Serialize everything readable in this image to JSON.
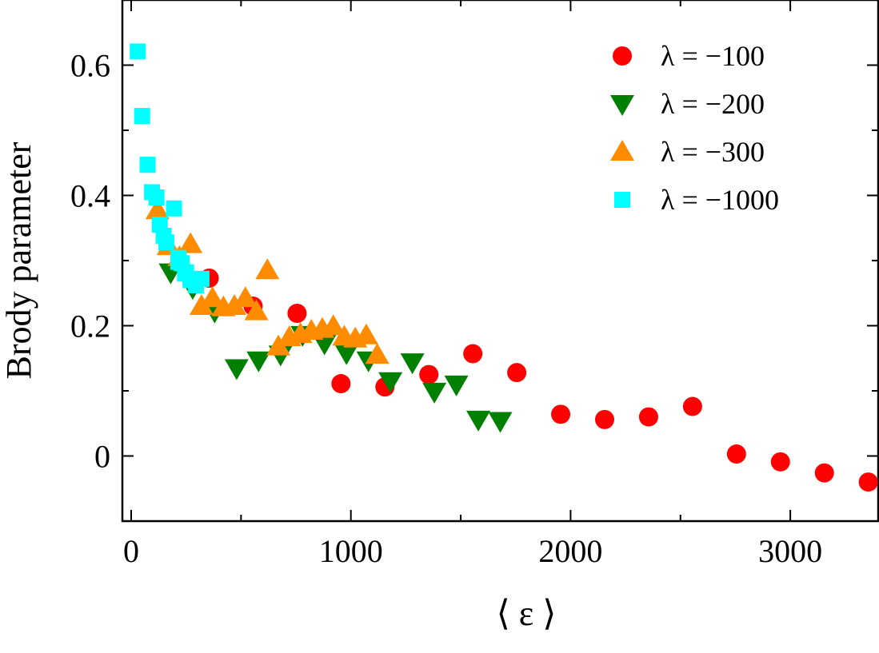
{
  "chart_data": {
    "type": "scatter",
    "xlabel": "⟨ ε ⟩",
    "ylabel": "Brody parameter",
    "xlim": [
      -40,
      3400
    ],
    "ylim": [
      -0.1,
      0.7
    ],
    "xticks": [
      0,
      1000,
      2000,
      3000
    ],
    "xtick_labels": [
      "0",
      "1000",
      "2000",
      "3000"
    ],
    "yticks": [
      0,
      0.2,
      0.4,
      0.6
    ],
    "ytick_labels": [
      "0",
      "0.2",
      "0.4",
      "0.6"
    ],
    "grid": false,
    "legend_position": "top-right",
    "series": [
      {
        "name": "λ = −100",
        "marker": "circle",
        "color": "#ff0000",
        "x": [
          355,
          555,
          755,
          955,
          1155,
          1355,
          1555,
          1755,
          1955,
          2155,
          2355,
          2555,
          2755,
          2955,
          3155,
          3355
        ],
        "y": [
          0.273,
          0.23,
          0.219,
          0.111,
          0.106,
          0.125,
          0.157,
          0.128,
          0.064,
          0.056,
          0.06,
          0.076,
          0.003,
          -0.009,
          -0.026,
          -0.04
        ]
      },
      {
        "name": "λ = −200",
        "marker": "triangle-down",
        "color": "#008000",
        "x": [
          180,
          280,
          380,
          480,
          580,
          680,
          780,
          880,
          980,
          1080,
          1180,
          1280,
          1380,
          1480,
          1580,
          1680
        ],
        "y": [
          0.282,
          0.258,
          0.222,
          0.135,
          0.147,
          0.156,
          0.186,
          0.173,
          0.158,
          0.147,
          0.115,
          0.144,
          0.099,
          0.11,
          0.056,
          0.054
        ]
      },
      {
        "name": "λ = −300",
        "marker": "triangle-up",
        "color": "#ff8c00",
        "x": [
          120,
          170,
          220,
          270,
          320,
          370,
          420,
          470,
          520,
          570,
          620,
          670,
          720,
          770,
          820,
          870,
          920,
          970,
          1020,
          1070,
          1120
        ],
        "y": [
          0.377,
          0.322,
          0.305,
          0.325,
          0.23,
          0.242,
          0.228,
          0.23,
          0.242,
          0.222,
          0.285,
          0.168,
          0.182,
          0.187,
          0.192,
          0.195,
          0.199,
          0.183,
          0.18,
          0.185,
          0.155
        ]
      },
      {
        "name": "λ = −1000",
        "marker": "square",
        "color": "#00ffff",
        "x": [
          30,
          50,
          75,
          95,
          115,
          130,
          148,
          160,
          195,
          215,
          230,
          250,
          270,
          295,
          320,
          215,
          245
        ],
        "y": [
          0.621,
          0.522,
          0.447,
          0.405,
          0.397,
          0.355,
          0.338,
          0.328,
          0.38,
          0.304,
          0.296,
          0.282,
          0.27,
          0.262,
          0.272,
          0.298,
          0.28
        ]
      }
    ]
  }
}
